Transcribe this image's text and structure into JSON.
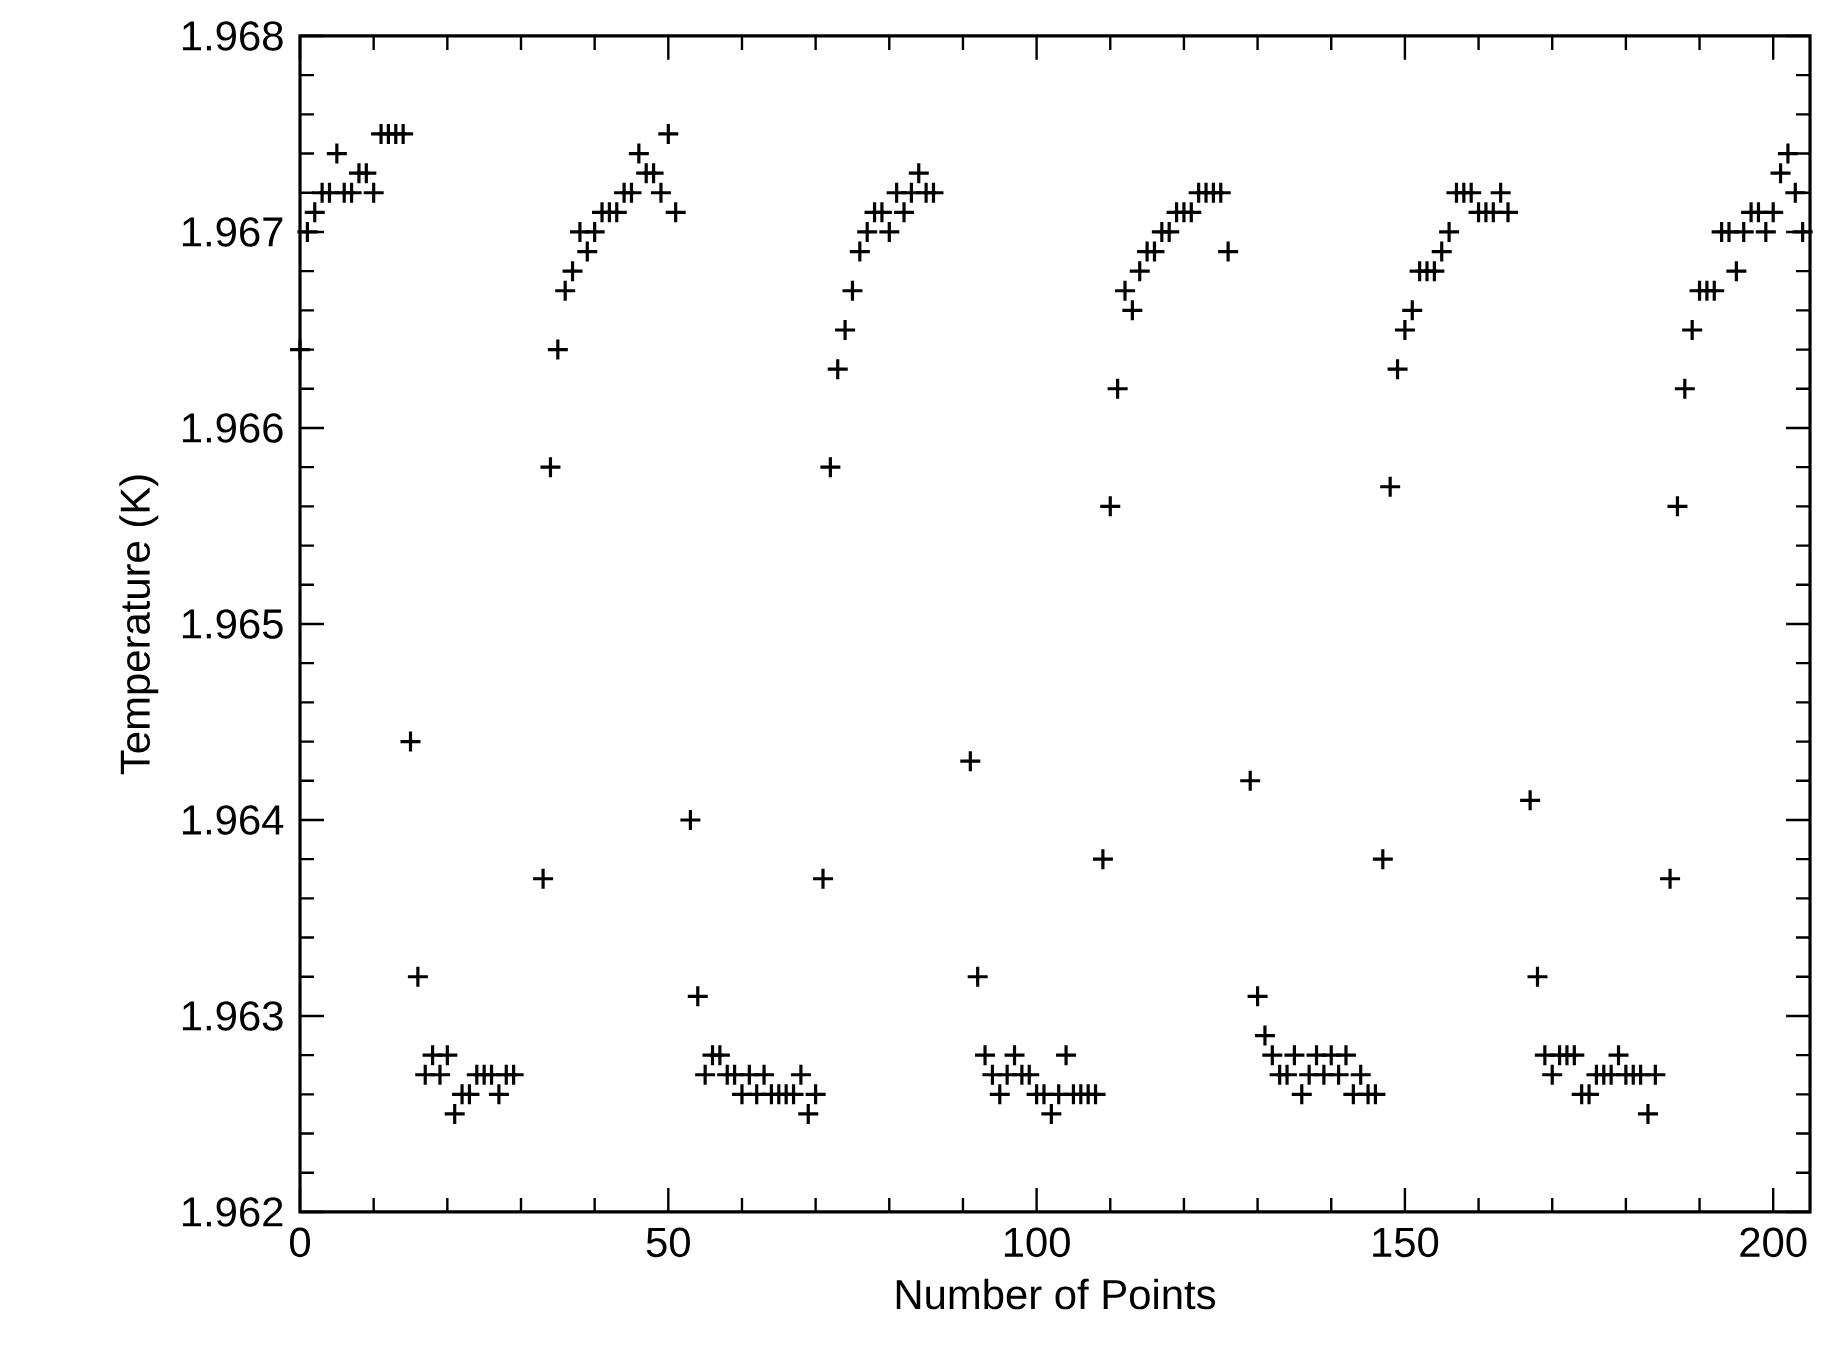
{
  "chart_data": {
    "type": "scatter",
    "xlabel": "Number of Points",
    "ylabel": "Temperature (K)",
    "xlim": [
      0,
      205
    ],
    "ylim": [
      1.962,
      1.968
    ],
    "xticks": [
      0,
      50,
      100,
      150,
      200
    ],
    "yticks": [
      1.962,
      1.963,
      1.964,
      1.965,
      1.966,
      1.967,
      1.968
    ],
    "grid": false,
    "marker": "cross",
    "series": [
      {
        "color": "#000000",
        "x": [
          0,
          1,
          2,
          3,
          4,
          5,
          6,
          7,
          8,
          9,
          10,
          11,
          12,
          13,
          14,
          15,
          16,
          17,
          18,
          19,
          20,
          21,
          22,
          23,
          24,
          25,
          26,
          27,
          28,
          29,
          33,
          34,
          35,
          36,
          37,
          38,
          39,
          40,
          41,
          42,
          43,
          44,
          45,
          46,
          47,
          48,
          49,
          50,
          51,
          53,
          54,
          55,
          56,
          57,
          58,
          59,
          60,
          61,
          62,
          63,
          64,
          65,
          66,
          67,
          68,
          69,
          70,
          71,
          72,
          73,
          74,
          75,
          76,
          77,
          78,
          79,
          80,
          81,
          82,
          83,
          84,
          85,
          86,
          91,
          92,
          93,
          94,
          95,
          96,
          97,
          98,
          99,
          100,
          101,
          102,
          103,
          104,
          105,
          106,
          107,
          108,
          109,
          110,
          111,
          112,
          113,
          114,
          115,
          116,
          117,
          118,
          119,
          120,
          121,
          122,
          123,
          124,
          125,
          126,
          129,
          130,
          131,
          132,
          133,
          134,
          135,
          136,
          137,
          138,
          139,
          140,
          141,
          142,
          143,
          144,
          145,
          146,
          147,
          148,
          149,
          150,
          151,
          152,
          153,
          154,
          155,
          156,
          157,
          158,
          159,
          160,
          161,
          162,
          163,
          164,
          167,
          168,
          169,
          170,
          171,
          172,
          173,
          174,
          175,
          176,
          177,
          178,
          179,
          180,
          181,
          182,
          183,
          184,
          186,
          187,
          188,
          189,
          190,
          191,
          192,
          193,
          194,
          195,
          196,
          197,
          198,
          199,
          200,
          201,
          202,
          203,
          204
        ],
        "values": [
          1.9664,
          1.967,
          1.9671,
          1.9672,
          1.9672,
          1.9674,
          1.9672,
          1.9672,
          1.9673,
          1.9673,
          1.9672,
          1.9675,
          1.9675,
          1.9675,
          1.9675,
          1.9644,
          1.9632,
          1.9627,
          1.9628,
          1.9627,
          1.9628,
          1.9625,
          1.9626,
          1.9626,
          1.9627,
          1.9627,
          1.9627,
          1.9626,
          1.9627,
          1.9627,
          1.9637,
          1.9658,
          1.9664,
          1.9667,
          1.9668,
          1.967,
          1.9669,
          1.967,
          1.9671,
          1.9671,
          1.9671,
          1.9672,
          1.9672,
          1.9674,
          1.9673,
          1.9673,
          1.9672,
          1.9675,
          1.9671,
          1.964,
          1.9631,
          1.9627,
          1.9628,
          1.9628,
          1.9627,
          1.9627,
          1.9626,
          1.9627,
          1.9626,
          1.9627,
          1.9626,
          1.9626,
          1.9626,
          1.9626,
          1.9627,
          1.9625,
          1.9626,
          1.9637,
          1.9658,
          1.9663,
          1.9665,
          1.9667,
          1.9669,
          1.967,
          1.9671,
          1.9671,
          1.967,
          1.9672,
          1.9671,
          1.9672,
          1.9673,
          1.9672,
          1.9672,
          1.9643,
          1.9632,
          1.9628,
          1.9627,
          1.9626,
          1.9627,
          1.9628,
          1.9627,
          1.9627,
          1.9626,
          1.9626,
          1.9625,
          1.9626,
          1.9628,
          1.9626,
          1.9626,
          1.9626,
          1.9626,
          1.9638,
          1.9656,
          1.9662,
          1.9667,
          1.9666,
          1.9668,
          1.9669,
          1.9669,
          1.967,
          1.967,
          1.9671,
          1.9671,
          1.9671,
          1.9672,
          1.9672,
          1.9672,
          1.9672,
          1.9669,
          1.9642,
          1.9631,
          1.9629,
          1.9628,
          1.9627,
          1.9627,
          1.9628,
          1.9626,
          1.9627,
          1.9628,
          1.9627,
          1.9628,
          1.9627,
          1.9628,
          1.9626,
          1.9627,
          1.9626,
          1.9626,
          1.9638,
          1.9657,
          1.9663,
          1.9665,
          1.9666,
          1.9668,
          1.9668,
          1.9668,
          1.9669,
          1.967,
          1.9672,
          1.9672,
          1.9672,
          1.9671,
          1.9671,
          1.9671,
          1.9672,
          1.9671,
          1.9641,
          1.9632,
          1.9628,
          1.9627,
          1.9628,
          1.9628,
          1.9628,
          1.9626,
          1.9626,
          1.9627,
          1.9627,
          1.9627,
          1.9628,
          1.9627,
          1.9627,
          1.9627,
          1.9625,
          1.9627,
          1.9637,
          1.9656,
          1.9662,
          1.9665,
          1.9667,
          1.9667,
          1.9667,
          1.967,
          1.967,
          1.9668,
          1.967,
          1.9671,
          1.9671,
          1.967,
          1.9671,
          1.9673,
          1.9674,
          1.9672,
          1.967
        ]
      }
    ]
  }
}
